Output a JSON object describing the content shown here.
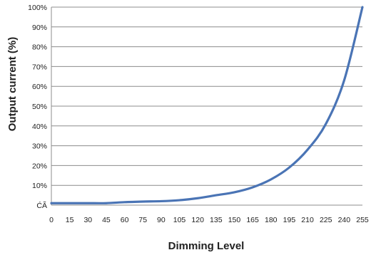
{
  "chart_data": {
    "type": "line",
    "title": "",
    "xlabel": "Dimming  Level",
    "ylabel": "Output current (%)",
    "x_ticks": [
      "0",
      "15",
      "30",
      "45",
      "60",
      "75",
      "90",
      "105",
      "120",
      "135",
      "150",
      "165",
      "180",
      "195",
      "210",
      "225",
      "240",
      "255"
    ],
    "y_ticks": [
      "ĆÃ",
      "10%",
      "20%",
      "30%",
      "40%",
      "50%",
      "60%",
      "70%",
      "80%",
      "90%",
      "100%"
    ],
    "xlim": [
      0,
      255
    ],
    "ylim": [
      0,
      100
    ],
    "grid": "horizontal",
    "legend": "none",
    "series": [
      {
        "color": "#4a74b5",
        "x": [
          0,
          15,
          30,
          45,
          60,
          75,
          90,
          105,
          120,
          135,
          150,
          165,
          180,
          195,
          210,
          225,
          240,
          255
        ],
        "y": [
          1,
          1,
          1,
          1,
          1.5,
          1.8,
          2,
          2.5,
          3.5,
          5,
          6.5,
          9,
          13,
          19,
          28,
          41,
          63,
          100
        ]
      }
    ]
  }
}
